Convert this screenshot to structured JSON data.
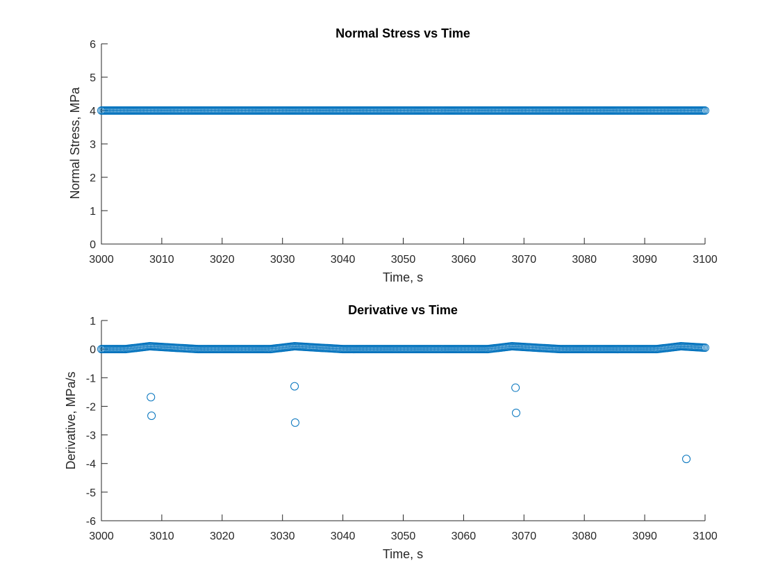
{
  "chart_data": [
    {
      "type": "scatter",
      "title": "Normal Stress vs Time",
      "xlabel": "Time, s",
      "ylabel": "Normal Stress, MPa",
      "xlim": [
        3000,
        3100
      ],
      "ylim": [
        0,
        6
      ],
      "xticks": [
        3000,
        3010,
        3020,
        3030,
        3040,
        3050,
        3060,
        3070,
        3080,
        3090,
        3100
      ],
      "yticks": [
        0,
        1,
        2,
        3,
        4,
        5,
        6
      ],
      "grid": false,
      "marker": "open-circle",
      "color": "#0072BD",
      "series": [
        {
          "x": [
            3000,
            3004,
            3008,
            3012,
            3016,
            3020,
            3024,
            3028,
            3032,
            3036,
            3040,
            3044,
            3048,
            3052,
            3056,
            3060,
            3064,
            3068,
            3072,
            3076,
            3080,
            3084,
            3088,
            3092,
            3096,
            3100
          ],
          "y": [
            4,
            4,
            4,
            4,
            4,
            4,
            4,
            4,
            4,
            4,
            4,
            4,
            4,
            4,
            4,
            4,
            4,
            4,
            4,
            4,
            4,
            4,
            4,
            4,
            4,
            4
          ]
        }
      ]
    },
    {
      "type": "scatter",
      "title": "Derivative vs Time",
      "xlabel": "Time, s",
      "ylabel": "Derivative, MPa/s",
      "xlim": [
        3000,
        3100
      ],
      "ylim": [
        -6,
        1
      ],
      "xticks": [
        3000,
        3010,
        3020,
        3030,
        3040,
        3050,
        3060,
        3070,
        3080,
        3090,
        3100
      ],
      "yticks": [
        -6,
        -5,
        -4,
        -3,
        -2,
        -1,
        0,
        1
      ],
      "grid": false,
      "marker": "open-circle",
      "color": "#0072BD",
      "series": [
        {
          "x": [
            3000,
            3004,
            3008,
            3012,
            3016,
            3020,
            3024,
            3028,
            3032,
            3036,
            3040,
            3044,
            3048,
            3052,
            3056,
            3060,
            3064,
            3068,
            3072,
            3076,
            3080,
            3084,
            3088,
            3092,
            3096,
            3100
          ],
          "y": [
            0,
            0,
            0.1,
            0.05,
            0,
            0,
            0,
            0,
            0.1,
            0.05,
            0,
            0,
            0,
            0,
            0,
            0,
            0,
            0.1,
            0.05,
            0,
            0,
            0,
            0,
            0,
            0.1,
            0.05
          ]
        },
        {
          "x": [
            3008.2,
            3008.3,
            3032.0,
            3032.1,
            3068.6,
            3068.7,
            3096.9
          ],
          "y": [
            -1.68,
            -2.33,
            -1.3,
            -2.57,
            -1.35,
            -2.23,
            -3.84
          ]
        }
      ]
    }
  ]
}
